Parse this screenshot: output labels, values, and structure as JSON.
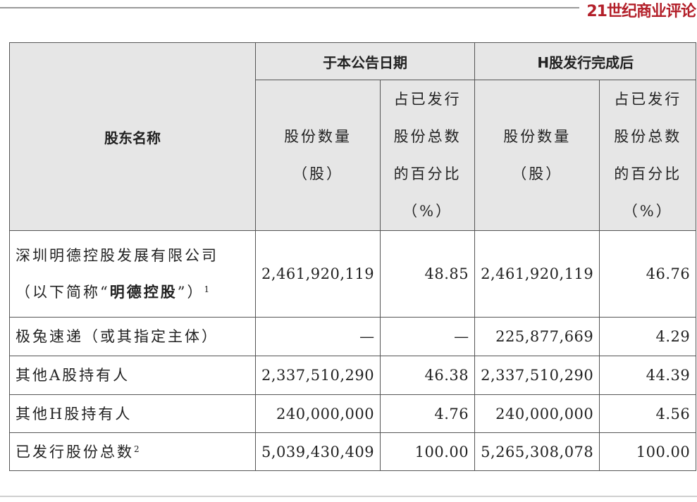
{
  "brand": {
    "logo_text": "21世纪商业评论"
  },
  "table": {
    "headers": {
      "shareholder_name": "股东名称",
      "group_current": "于本公告日期",
      "group_after": "H股发行完成后",
      "shares_line1": "股份数量",
      "shares_line2": "（股）",
      "pct_line1": "占已发行",
      "pct_line2": "股份总数",
      "pct_line3": "的百分比",
      "pct_line4": "（%）"
    },
    "rows": [
      {
        "name_line1": "深圳明德控股发展有限公司",
        "name_line2_pre": "（以下简称“",
        "name_line2_bold": "明德控股",
        "name_line2_post": "”）",
        "footnote": "1",
        "shares_now": "2,461,920,119",
        "pct_now": "48.85",
        "shares_after": "2,461,920,119",
        "pct_after": "46.76"
      },
      {
        "name": "极兔速递（或其指定主体）",
        "shares_now": "—",
        "pct_now": "—",
        "shares_after": "225,877,669",
        "pct_after": "4.29"
      },
      {
        "name": "其他A股持有人",
        "shares_now": "2,337,510,290",
        "pct_now": "46.38",
        "shares_after": "2,337,510,290",
        "pct_after": "44.39"
      },
      {
        "name": "其他H股持有人",
        "shares_now": "240,000,000",
        "pct_now": "4.76",
        "shares_after": "240,000,000",
        "pct_after": "4.56"
      },
      {
        "name": "已发行股份总数",
        "footnote": "2",
        "shares_now": "5,039,430,409",
        "pct_now": "100.00",
        "shares_after": "5,265,308,078",
        "pct_after": "100.00"
      }
    ]
  }
}
